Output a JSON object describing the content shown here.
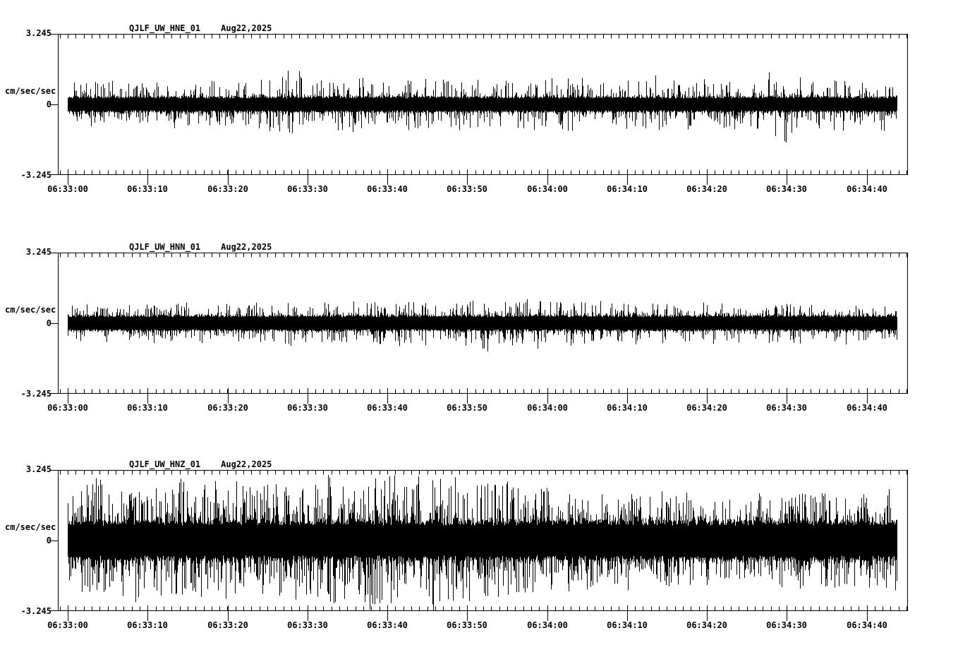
{
  "colors": {
    "background": "#ffffff",
    "ink": "#000000"
  },
  "time_axis": {
    "tick_labels": [
      "06:33:00",
      "06:33:10",
      "06:33:20",
      "06:33:30",
      "06:33:40",
      "06:33:50",
      "06:34:00",
      "06:34:10",
      "06:34:20",
      "06:34:30",
      "06:34:40"
    ],
    "major_interval_sec": 10,
    "minor_interval_sec": 1
  },
  "chart_data": [
    {
      "type": "line",
      "title": "QJLF_UW_HNE_01",
      "date_label": "Aug22,2025",
      "ylabel": "cm/sec/sec",
      "ylim": [
        -3.245,
        3.245
      ],
      "ytick_labels": [
        "3.245",
        "0",
        "-3.245"
      ],
      "xtick_labels": [
        "06:33:00",
        "06:33:10",
        "06:33:20",
        "06:33:30",
        "06:33:40",
        "06:33:50",
        "06:34:00",
        "06:34:10",
        "06:34:20",
        "06:34:30",
        "06:34:40"
      ],
      "x_major_interval_sec": 10,
      "x_minor_interval_sec": 1,
      "grid": false,
      "series": [
        {
          "name": "QJLF_UW_HNE_01",
          "envelope_dt_sec": 2,
          "core_amplitude_cm_s2": 0.38,
          "envelope_peak_cm_s2": [
            1.15,
            1.0,
            1.1,
            1.05,
            1.2,
            1.0,
            1.1,
            1.15,
            1.0,
            1.1,
            1.05,
            1.1,
            1.2,
            1.3,
            1.75,
            1.2,
            1.1,
            1.15,
            1.3,
            1.2,
            1.1,
            1.35,
            1.15,
            1.1,
            1.2,
            1.1,
            1.3,
            1.15,
            1.1,
            1.2,
            1.1,
            1.35,
            1.2,
            1.1,
            1.15,
            1.25,
            1.1,
            1.45,
            1.2,
            1.1,
            1.15,
            1.1,
            1.2,
            1.15,
            1.5,
            1.85,
            1.2,
            1.1,
            1.3,
            1.15,
            1.1,
            1.25,
            1.1
          ]
        }
      ]
    },
    {
      "type": "line",
      "title": "QJLF_UW_HNN_01",
      "date_label": "Aug22,2025",
      "ylabel": "cm/sec/sec",
      "ylim": [
        -3.245,
        3.245
      ],
      "ytick_labels": [
        "3.245",
        "0",
        "-3.245"
      ],
      "xtick_labels": [
        "06:33:00",
        "06:33:10",
        "06:33:20",
        "06:33:30",
        "06:33:40",
        "06:33:50",
        "06:34:00",
        "06:34:10",
        "06:34:20",
        "06:34:30",
        "06:34:40"
      ],
      "x_major_interval_sec": 10,
      "x_minor_interval_sec": 1,
      "grid": false,
      "series": [
        {
          "name": "QJLF_UW_HNN_01",
          "envelope_dt_sec": 2,
          "core_amplitude_cm_s2": 0.38,
          "envelope_peak_cm_s2": [
            0.9,
            0.95,
            1.0,
            0.9,
            0.95,
            0.9,
            1.0,
            0.95,
            0.9,
            1.0,
            0.95,
            0.9,
            1.0,
            0.95,
            1.05,
            0.9,
            1.0,
            0.95,
            1.05,
            1.0,
            1.1,
            1.05,
            1.15,
            1.0,
            1.2,
            1.1,
            1.3,
            1.15,
            1.2,
            1.25,
            1.1,
            1.05,
            1.15,
            1.0,
            0.95,
            1.05,
            1.0,
            0.95,
            0.9,
            1.0,
            0.95,
            0.9,
            1.0,
            0.95,
            0.9,
            0.95,
            1.0,
            0.9,
            0.95,
            1.0,
            0.9,
            0.95,
            0.9
          ]
        }
      ]
    },
    {
      "type": "line",
      "title": "QJLF_UW_HNZ_01",
      "date_label": "Aug22,2025",
      "ylabel": "cm/sec/sec",
      "ylim": [
        -3.245,
        3.245
      ],
      "ytick_labels": [
        "3.245",
        "0",
        "-3.245"
      ],
      "xtick_labels": [
        "06:33:00",
        "06:33:10",
        "06:33:20",
        "06:33:30",
        "06:33:40",
        "06:33:50",
        "06:34:00",
        "06:34:10",
        "06:34:20",
        "06:34:30",
        "06:34:40"
      ],
      "x_major_interval_sec": 10,
      "x_minor_interval_sec": 1,
      "grid": false,
      "series": [
        {
          "name": "QJLF_UW_HNZ_01",
          "envelope_dt_sec": 2,
          "core_amplitude_cm_s2": 0.95,
          "envelope_peak_cm_s2": [
            2.5,
            2.7,
            2.9,
            2.6,
            3.0,
            2.8,
            2.7,
            3.0,
            2.85,
            2.6,
            2.8,
            2.95,
            2.7,
            2.9,
            3.05,
            2.8,
            3.0,
            3.15,
            3.2,
            3.05,
            3.2,
            3.1,
            2.95,
            3.2,
            3.1,
            3.0,
            2.85,
            3.0,
            2.7,
            2.5,
            2.55,
            2.4,
            2.3,
            2.45,
            2.2,
            2.3,
            2.1,
            2.2,
            2.3,
            2.1,
            2.0,
            2.15,
            2.05,
            2.25,
            2.1,
            2.35,
            2.2,
            2.45,
            2.3,
            2.25,
            2.45,
            2.35,
            2.55
          ]
        }
      ]
    }
  ]
}
